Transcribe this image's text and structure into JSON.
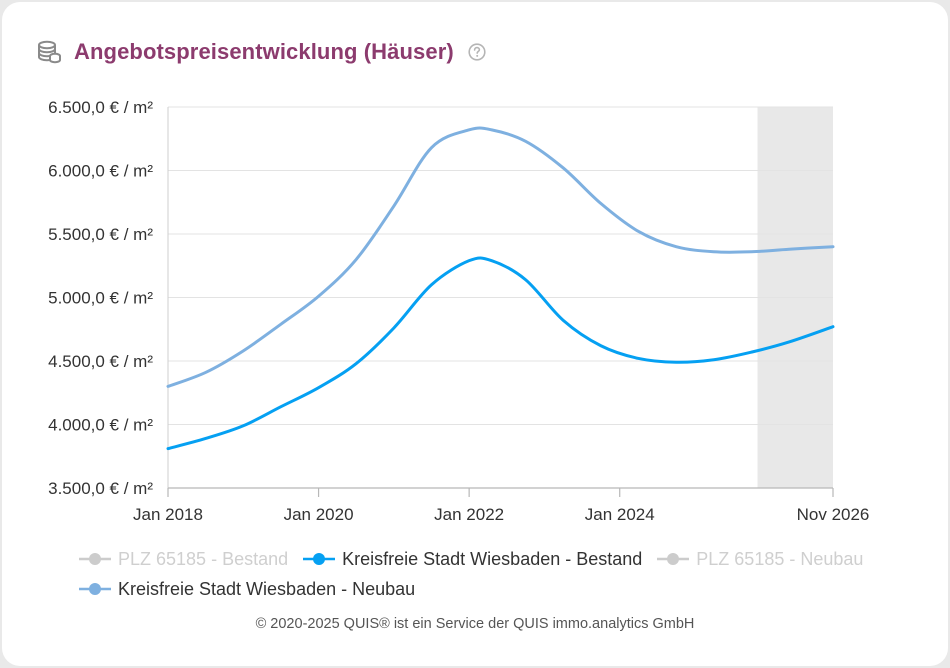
{
  "header": {
    "title": "Angebotspreisentwicklung (Häuser)",
    "db_icon": "database-icon",
    "help_icon": "help-circle-icon"
  },
  "chart_data": {
    "type": "line",
    "title": "Angebotspreisentwicklung (Häuser)",
    "xlabel": "",
    "ylabel": "",
    "y_tick_labels": [
      "3.500,0 € / m²",
      "4.000,0 € / m²",
      "4.500,0 € / m²",
      "5.000,0 € / m²",
      "5.500,0 € / m²",
      "6.000,0 € / m²",
      "6.500,0 € / m²"
    ],
    "y_ticks": [
      3500,
      4000,
      4500,
      5000,
      5500,
      6000,
      6500
    ],
    "ylim": [
      3500,
      6500
    ],
    "x_ticks": [
      2018,
      2020,
      2022,
      2024,
      2026.833
    ],
    "x_tick_labels": [
      "Jan 2018",
      "Jan 2020",
      "Jan 2022",
      "Jan 2024",
      "Nov 2026"
    ],
    "xlim": [
      2018,
      2026.833
    ],
    "forecast_start": 2025.83,
    "grid": true,
    "legend_position": "bottom",
    "series": [
      {
        "name": "PLZ 65185 - Bestand",
        "visible": false,
        "color": "#cccccc",
        "x": [],
        "values": []
      },
      {
        "name": "Kreisfreie Stadt Wiesbaden - Bestand",
        "visible": true,
        "color": "#05a0f2",
        "x": [
          2018.0,
          2018.5,
          2019.0,
          2019.5,
          2020.0,
          2020.5,
          2021.0,
          2021.5,
          2022.0,
          2022.3,
          2022.75,
          2023.25,
          2023.75,
          2024.25,
          2024.75,
          2025.25,
          2025.75,
          2026.25,
          2026.833
        ],
        "values": [
          3810,
          3890,
          3990,
          4140,
          4290,
          4480,
          4760,
          5100,
          5290,
          5290,
          5140,
          4820,
          4620,
          4520,
          4490,
          4510,
          4570,
          4650,
          4770
        ]
      },
      {
        "name": "PLZ 65185 - Neubau",
        "visible": false,
        "color": "#cccccc",
        "x": [],
        "values": []
      },
      {
        "name": "Kreisfreie Stadt Wiesbaden - Neubau",
        "visible": true,
        "color": "#7eb0e0",
        "x": [
          2018.0,
          2018.5,
          2019.0,
          2019.5,
          2020.0,
          2020.5,
          2021.0,
          2021.5,
          2022.0,
          2022.3,
          2022.75,
          2023.25,
          2023.75,
          2024.25,
          2024.75,
          2025.25,
          2025.75,
          2026.25,
          2026.833
        ],
        "values": [
          4300,
          4410,
          4580,
          4790,
          5010,
          5300,
          5720,
          6180,
          6320,
          6320,
          6230,
          6020,
          5740,
          5520,
          5400,
          5360,
          5360,
          5380,
          5400
        ]
      }
    ]
  },
  "footer": {
    "copyright": "© 2020-2025 QUIS® ist ein Service der QUIS immo.analytics GmbH"
  }
}
